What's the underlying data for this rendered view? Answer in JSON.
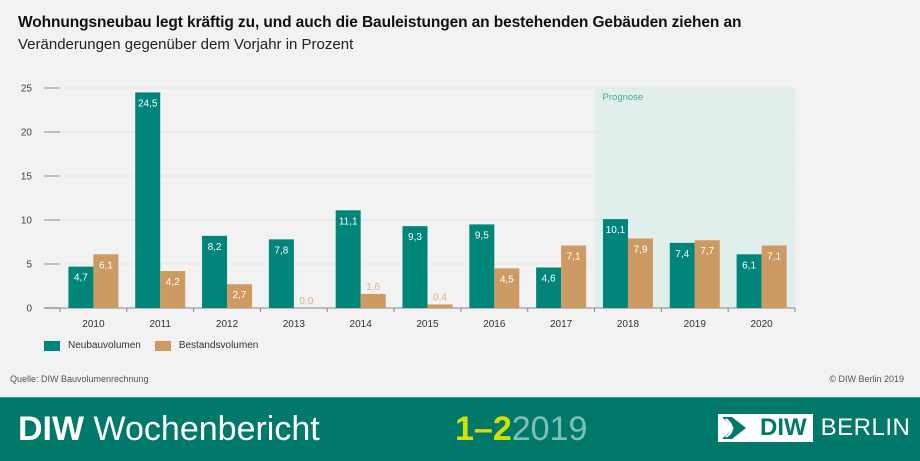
{
  "header": {
    "title": "Wohnungsneubau legt kräftig zu, und auch die Bauleistungen an bestehenden Gebäuden ziehen an",
    "subtitle": "Veränderungen gegenüber dem Vorjahr in Prozent"
  },
  "chart_data": {
    "type": "bar",
    "title": "Wohnungsneubau legt kräftig zu, und auch die Bauleistungen an bestehenden Gebäuden ziehen an",
    "subtitle": "Veränderungen gegenüber dem Vorjahr in Prozent",
    "xlabel": "",
    "ylabel": "",
    "ylim": [
      0,
      25
    ],
    "yticks": [
      0,
      5,
      10,
      15,
      20,
      25
    ],
    "grid": true,
    "categories": [
      "2010",
      "2011",
      "2012",
      "2013",
      "2014",
      "2015",
      "2016",
      "2017",
      "2018",
      "2019",
      "2020"
    ],
    "series": [
      {
        "name": "Neubauvolumen",
        "color": "#00857a",
        "values": [
          4.7,
          24.5,
          8.2,
          7.8,
          11.1,
          9.3,
          9.5,
          4.6,
          10.1,
          7.4,
          6.1
        ],
        "labels": [
          "4,7",
          "24,5",
          "8,2",
          "7,8",
          "11,1",
          "9,3",
          "9,5",
          "4,6",
          "10,1",
          "7,4",
          "6,1"
        ]
      },
      {
        "name": "Bestandsvolumen",
        "color": "#cc9a62",
        "values": [
          6.1,
          4.2,
          2.7,
          0.0,
          1.6,
          0.4,
          4.5,
          7.1,
          7.9,
          7.7,
          7.1
        ],
        "labels": [
          "6,1",
          "4,2",
          "2,7",
          "0,0",
          "1,6",
          "0,4",
          "4,5",
          "7,1",
          "7,9",
          "7,7",
          "7,1"
        ]
      }
    ],
    "annotations": [
      {
        "text": "Prognose",
        "range": [
          "2018",
          "2020"
        ],
        "shade_color": "#e0efeb",
        "text_color": "#4aa898"
      }
    ],
    "legend": {
      "placement": "bottom-left",
      "entries": [
        "Neubauvolumen",
        "Bestandsvolumen"
      ]
    }
  },
  "source": "Quelle: DIW Bauvolumenrechnung",
  "copyright": "© DIW Berlin 2019",
  "footer": {
    "brand_bold": "DIW",
    "brand_text": "Wochenbericht",
    "issue_number": "1–2",
    "issue_year": "2019",
    "logo_text": "DIW",
    "logo_city": "BERLIN"
  }
}
